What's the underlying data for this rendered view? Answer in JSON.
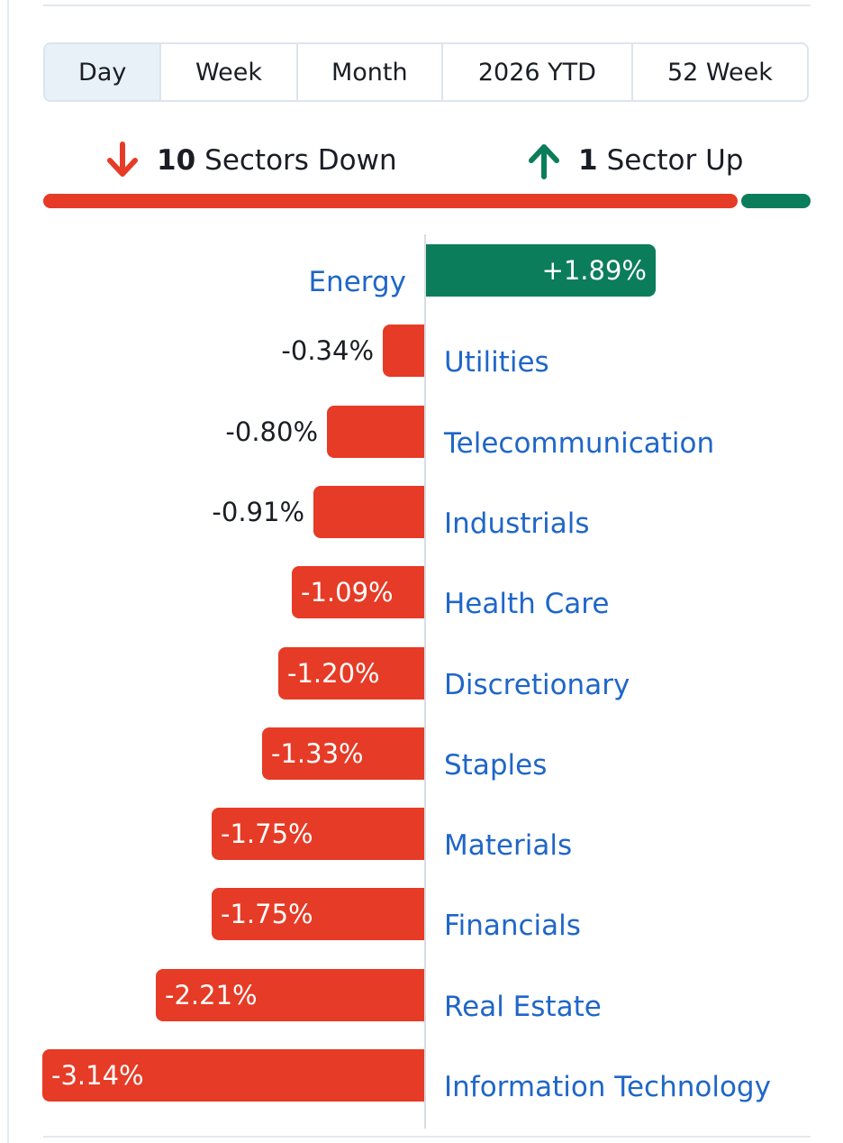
{
  "tabs": [
    "Day",
    "Week",
    "Month",
    "2026 YTD",
    "52 Week"
  ],
  "active_tab": "Day",
  "summary": {
    "down_count": "10",
    "down_label": "Sectors Down",
    "up_count": "1",
    "up_label": "Sector Up"
  },
  "colors": {
    "down": "#e63b26",
    "up": "#0b7d5a",
    "link": "#1f66c8",
    "text": "#1a1d24"
  },
  "chart_data": {
    "type": "bar",
    "orientation": "horizontal",
    "categories": [
      "Energy",
      "Utilities",
      "Telecommunication",
      "Industrials",
      "Health Care",
      "Discretionary",
      "Staples",
      "Materials",
      "Financials",
      "Real Estate",
      "Information Technology"
    ],
    "values": [
      1.89,
      -0.34,
      -0.8,
      -0.91,
      -1.09,
      -1.2,
      -1.33,
      -1.75,
      -1.75,
      -2.21,
      -3.14
    ],
    "labels": [
      "+1.89%",
      "-0.34%",
      "-0.80%",
      "-0.91%",
      "-1.09%",
      "-1.20%",
      "-1.33%",
      "-1.75%",
      "-1.75%",
      "-2.21%",
      "-3.14%"
    ],
    "unit": "%",
    "sectors_down": 10,
    "sectors_up": 1
  }
}
